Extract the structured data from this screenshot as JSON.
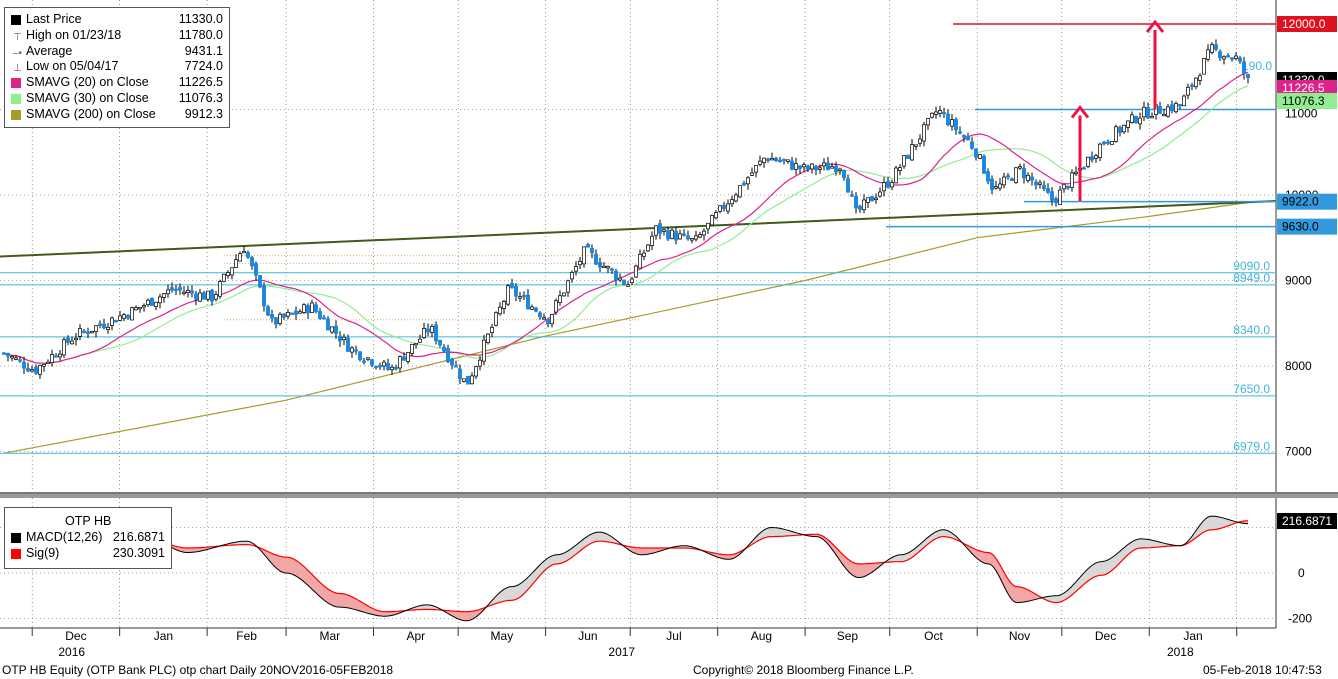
{
  "footer": {
    "left": "OTP HB Equity (OTP Bank PLC) otp chart  Daily 20NOV2016-05FEB2018",
    "center": "Copyright© 2018 Bloomberg Finance L.P.",
    "right": "05-Feb-2018 10:47:53"
  },
  "legend_price": [
    {
      "label": "Last Price",
      "value": "11330.0",
      "color": "#000000",
      "style": "square"
    },
    {
      "label": "High on 01/23/18",
      "value": "11780.0",
      "color": "#777777",
      "style": "high"
    },
    {
      "label": "Average",
      "value": "9431.1",
      "color": "#777777",
      "style": "avg"
    },
    {
      "label": "Low on 05/04/17",
      "value": "7724.0",
      "color": "#777777",
      "style": "low"
    },
    {
      "label": "SMAVG (20) on Close",
      "value": "11226.5",
      "color": "#e0218a",
      "style": "square"
    },
    {
      "label": "SMAVG (30) on Close",
      "value": "11076.3",
      "color": "#90ee90",
      "style": "square"
    },
    {
      "label": "SMAVG (200) on Close",
      "value": "9912.3",
      "color": "#a89a2a",
      "style": "square"
    }
  ],
  "legend_macd": {
    "title": "OTP HB",
    "items": [
      {
        "label": "MACD(12,26)",
        "value": "216.6871",
        "color": "#000000"
      },
      {
        "label": "Sig(9)",
        "value": "230.3091",
        "color": "#ff0000"
      }
    ]
  },
  "chart_data": [
    {
      "type": "candlestick",
      "title": "OTP HB Equity (OTP Bank PLC)",
      "ylim": [
        6500,
        12300
      ],
      "yticks": [
        7000,
        8000,
        9000,
        10000
      ],
      "x_month_labels": [
        "Dec",
        "Jan",
        "Feb",
        "Mar",
        "Apr",
        "May",
        "Jun",
        "Jul",
        "Aug",
        "Sep",
        "Oct",
        "Nov",
        "Dec",
        "Jan"
      ],
      "x_year_labels": [
        "2016",
        "2017",
        "2018"
      ],
      "price_path": [
        [
          "2016-11-21",
          8150
        ],
        [
          "2016-12-02",
          7950
        ],
        [
          "2016-12-16",
          8350
        ],
        [
          "2017-01-06",
          8650
        ],
        [
          "2017-01-20",
          8900
        ],
        [
          "2017-02-03",
          8800
        ],
        [
          "2017-02-14",
          9400
        ],
        [
          "2017-02-24",
          8500
        ],
        [
          "2017-03-10",
          8700
        ],
        [
          "2017-03-24",
          8200
        ],
        [
          "2017-04-07",
          7950
        ],
        [
          "2017-04-21",
          8450
        ],
        [
          "2017-05-04",
          7780
        ],
        [
          "2017-05-19",
          8900
        ],
        [
          "2017-06-02",
          8550
        ],
        [
          "2017-06-15",
          9350
        ],
        [
          "2017-06-30",
          8950
        ],
        [
          "2017-07-10",
          9600
        ],
        [
          "2017-07-24",
          9450
        ],
        [
          "2017-08-04",
          9900
        ],
        [
          "2017-08-18",
          10450
        ],
        [
          "2017-09-01",
          10300
        ],
        [
          "2017-09-14",
          10350
        ],
        [
          "2017-09-19",
          9780
        ],
        [
          "2017-10-02",
          10200
        ],
        [
          "2017-10-18",
          11000
        ],
        [
          "2017-10-31",
          10550
        ],
        [
          "2017-11-07",
          10050
        ],
        [
          "2017-11-16",
          10300
        ],
        [
          "2017-11-28",
          9930
        ],
        [
          "2017-12-15",
          10600
        ],
        [
          "2017-12-29",
          10950
        ],
        [
          "2018-01-12",
          11050
        ],
        [
          "2018-01-23",
          11700
        ],
        [
          "2018-02-01",
          11600
        ],
        [
          "2018-02-05",
          11330
        ]
      ],
      "indicators": {
        "sma200": [
          [
            "2016-11-21",
            6980
          ],
          [
            "2017-03-01",
            7600
          ],
          [
            "2017-06-01",
            8350
          ],
          [
            "2017-09-01",
            9000
          ],
          [
            "2017-11-01",
            9500
          ],
          [
            "2018-01-01",
            9750
          ],
          [
            "2018-02-05",
            9912.3
          ]
        ]
      },
      "last_price": 11330.0,
      "high": {
        "date": "01/23/18",
        "value": 11780.0
      },
      "low": {
        "date": "05/04/17",
        "value": 7724.0
      },
      "average": 9431.1,
      "sma20_last": 11226.5,
      "sma30_last": 11076.3,
      "sma200_last": 9912.3,
      "horizontal_levels": [
        {
          "value": 12000.0,
          "color": "#e0101e",
          "labeled": true
        },
        {
          "value": 11000.0,
          "color": "#3399dd",
          "labeled": false
        },
        {
          "value": 9922.0,
          "color": "#3399dd",
          "labeled": true
        },
        {
          "value": 9630.0,
          "color": "#3399dd",
          "labeled": true
        },
        {
          "value": 9090.0,
          "color": "#3fb6d8",
          "labeled": true
        },
        {
          "value": 8949.0,
          "color": "#3fb6d8",
          "labeled": true
        },
        {
          "value": 8340.0,
          "color": "#3fb6d8",
          "labeled": true
        },
        {
          "value": 7650.0,
          "color": "#3fb6d8",
          "labeled": true
        },
        {
          "value": 6979.0,
          "color": "#3fb6d8",
          "labeled": true
        }
      ],
      "partial_level_label": "190.0",
      "trendline": [
        [
          "2016-11-21",
          9280
        ],
        [
          "2018-02-07",
          9930
        ]
      ],
      "right_tags": [
        {
          "text": "12000.0",
          "value": 12000.0,
          "bg": "#e0101e",
          "fg": "#ffffff"
        },
        {
          "text": "11330.0",
          "value": 11330.0,
          "bg": "#000000",
          "fg": "#ffffff"
        },
        {
          "text": "11226.5",
          "value": 11226.5,
          "bg": "#e0218a",
          "fg": "#ffffff"
        },
        {
          "text": "11076.3",
          "value": 11076.3,
          "bg": "#90ee90",
          "fg": "#000000"
        },
        {
          "text": "9922.0",
          "value": 9922.0,
          "bg": "#3399dd",
          "fg": "#000000"
        },
        {
          "text": "9630.0",
          "value": 9630.0,
          "bg": "#3399dd",
          "fg": "#000000"
        }
      ],
      "right_tick_label_11000": "11000"
    },
    {
      "type": "line",
      "title": "OTP HB",
      "series": [
        {
          "name": "MACD(12,26)",
          "last": 216.6871
        },
        {
          "name": "Sig(9)",
          "last": 230.3091
        }
      ],
      "yticks": [
        -200,
        0
      ],
      "ylim": [
        -230,
        240
      ],
      "macd_path": [
        [
          "2016-11-21",
          140
        ],
        [
          "2016-12-05",
          130
        ],
        [
          "2016-12-20",
          160
        ],
        [
          "2017-01-10",
          160
        ],
        [
          "2017-01-25",
          90
        ],
        [
          "2017-02-15",
          140
        ],
        [
          "2017-03-01",
          0
        ],
        [
          "2017-03-20",
          -150
        ],
        [
          "2017-04-05",
          -190
        ],
        [
          "2017-04-20",
          -140
        ],
        [
          "2017-05-04",
          -210
        ],
        [
          "2017-05-20",
          -60
        ],
        [
          "2017-06-05",
          80
        ],
        [
          "2017-06-20",
          180
        ],
        [
          "2017-07-05",
          80
        ],
        [
          "2017-07-20",
          120
        ],
        [
          "2017-08-05",
          60
        ],
        [
          "2017-08-20",
          200
        ],
        [
          "2017-09-05",
          160
        ],
        [
          "2017-09-20",
          -20
        ],
        [
          "2017-10-05",
          80
        ],
        [
          "2017-10-20",
          190
        ],
        [
          "2017-11-05",
          40
        ],
        [
          "2017-11-15",
          -130
        ],
        [
          "2017-11-29",
          -100
        ],
        [
          "2017-12-15",
          50
        ],
        [
          "2017-12-29",
          150
        ],
        [
          "2018-01-12",
          120
        ],
        [
          "2018-01-23",
          250
        ],
        [
          "2018-02-05",
          217
        ]
      ],
      "signal_path": [
        [
          "2016-11-21",
          120
        ],
        [
          "2016-12-05",
          140
        ],
        [
          "2016-12-20",
          150
        ],
        [
          "2017-01-10",
          150
        ],
        [
          "2017-01-25",
          110
        ],
        [
          "2017-02-15",
          125
        ],
        [
          "2017-03-01",
          70
        ],
        [
          "2017-03-20",
          -90
        ],
        [
          "2017-04-05",
          -170
        ],
        [
          "2017-04-20",
          -160
        ],
        [
          "2017-05-04",
          -170
        ],
        [
          "2017-05-20",
          -120
        ],
        [
          "2017-06-05",
          40
        ],
        [
          "2017-06-20",
          140
        ],
        [
          "2017-07-05",
          110
        ],
        [
          "2017-07-20",
          110
        ],
        [
          "2017-08-05",
          80
        ],
        [
          "2017-08-20",
          160
        ],
        [
          "2017-09-05",
          170
        ],
        [
          "2017-09-20",
          40
        ],
        [
          "2017-10-05",
          50
        ],
        [
          "2017-10-20",
          160
        ],
        [
          "2017-11-05",
          90
        ],
        [
          "2017-11-15",
          -60
        ],
        [
          "2017-11-29",
          -130
        ],
        [
          "2017-12-15",
          -10
        ],
        [
          "2017-12-29",
          110
        ],
        [
          "2018-01-12",
          120
        ],
        [
          "2018-01-23",
          190
        ],
        [
          "2018-02-05",
          230
        ]
      ],
      "right_tag": {
        "text": "216.6871",
        "value": 216.6871,
        "bg": "#000000",
        "fg": "#ffffff"
      }
    }
  ]
}
